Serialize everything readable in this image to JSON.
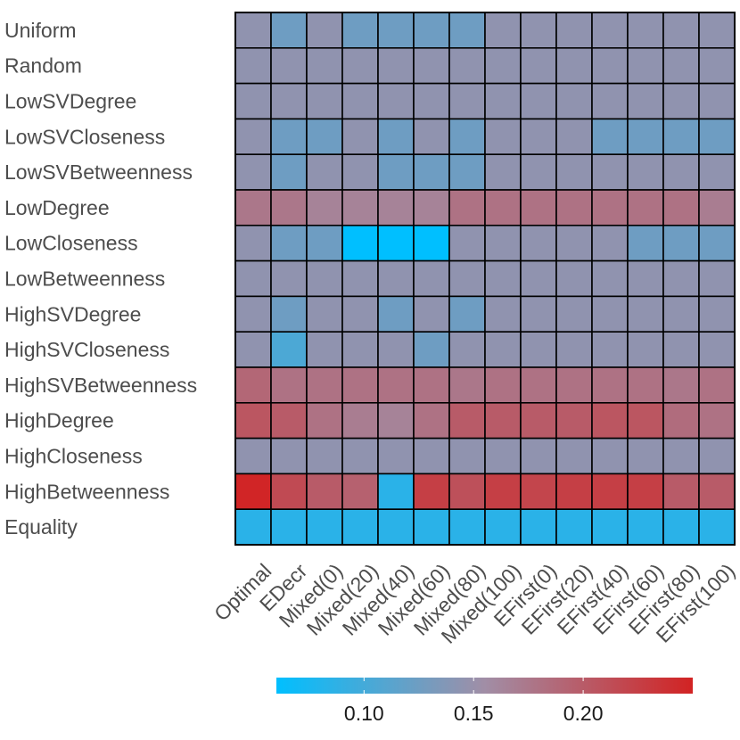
{
  "chart_data": {
    "type": "heatmap",
    "rows": [
      "Uniform",
      "Random",
      "LowSVDegree",
      "LowSVCloseness",
      "LowSVBetweenness",
      "LowDegree",
      "LowCloseness",
      "LowBetweenness",
      "HighSVDegree",
      "HighSVCloseness",
      "HighSVBetweenness",
      "HighDegree",
      "HighCloseness",
      "HighBetweenness",
      "Equality"
    ],
    "columns": [
      "Optimal",
      "EDecr",
      "Mixed(0)",
      "Mixed(20)",
      "Mixed(40)",
      "Mixed(60)",
      "Mixed(80)",
      "Mixed(100)",
      "EFirst(0)",
      "EFirst(20)",
      "EFirst(40)",
      "EFirst(60)",
      "EFirst(80)",
      "EFirst(100)"
    ],
    "values": [
      [
        0.145,
        0.125,
        0.145,
        0.125,
        0.125,
        0.125,
        0.125,
        0.145,
        0.145,
        0.145,
        0.145,
        0.145,
        0.145,
        0.145
      ],
      [
        0.145,
        0.145,
        0.145,
        0.145,
        0.145,
        0.145,
        0.145,
        0.145,
        0.145,
        0.145,
        0.145,
        0.145,
        0.145,
        0.145
      ],
      [
        0.145,
        0.145,
        0.145,
        0.145,
        0.145,
        0.145,
        0.145,
        0.145,
        0.145,
        0.145,
        0.145,
        0.145,
        0.145,
        0.145
      ],
      [
        0.145,
        0.125,
        0.125,
        0.145,
        0.125,
        0.145,
        0.125,
        0.145,
        0.145,
        0.145,
        0.125,
        0.125,
        0.125,
        0.125
      ],
      [
        0.145,
        0.125,
        0.145,
        0.145,
        0.125,
        0.125,
        0.125,
        0.145,
        0.145,
        0.145,
        0.145,
        0.145,
        0.145,
        0.145
      ],
      [
        0.175,
        0.175,
        0.165,
        0.165,
        0.165,
        0.165,
        0.18,
        0.18,
        0.18,
        0.18,
        0.18,
        0.18,
        0.18,
        0.17
      ],
      [
        0.145,
        0.125,
        0.125,
        0.06,
        0.06,
        0.06,
        0.145,
        0.145,
        0.145,
        0.145,
        0.145,
        0.125,
        0.125,
        0.125
      ],
      [
        0.145,
        0.145,
        0.145,
        0.145,
        0.145,
        0.145,
        0.145,
        0.145,
        0.145,
        0.145,
        0.145,
        0.145,
        0.145,
        0.145
      ],
      [
        0.145,
        0.125,
        0.145,
        0.145,
        0.125,
        0.145,
        0.125,
        0.145,
        0.145,
        0.145,
        0.145,
        0.145,
        0.145,
        0.145
      ],
      [
        0.145,
        0.105,
        0.145,
        0.145,
        0.145,
        0.125,
        0.145,
        0.145,
        0.145,
        0.145,
        0.145,
        0.145,
        0.145,
        0.145
      ],
      [
        0.19,
        0.18,
        0.18,
        0.18,
        0.18,
        0.18,
        0.175,
        0.18,
        0.18,
        0.18,
        0.18,
        0.18,
        0.175,
        0.18
      ],
      [
        0.205,
        0.2,
        0.18,
        0.17,
        0.165,
        0.18,
        0.2,
        0.2,
        0.2,
        0.2,
        0.205,
        0.205,
        0.185,
        0.18
      ],
      [
        0.145,
        0.145,
        0.145,
        0.145,
        0.145,
        0.145,
        0.145,
        0.145,
        0.145,
        0.145,
        0.145,
        0.145,
        0.145,
        0.145
      ],
      [
        0.248,
        0.215,
        0.2,
        0.195,
        0.085,
        0.225,
        0.21,
        0.225,
        0.22,
        0.225,
        0.225,
        0.225,
        0.2,
        0.2
      ],
      [
        0.085,
        0.085,
        0.085,
        0.085,
        0.085,
        0.085,
        0.085,
        0.085,
        0.085,
        0.085,
        0.085,
        0.085,
        0.085,
        0.085
      ]
    ],
    "colorbar": {
      "min": 0.06,
      "max": 0.25,
      "low_color": "#00bfff",
      "mid_color": "#a18ea6",
      "high_color": "#d22323",
      "ticks": [
        0.1,
        0.15,
        0.2
      ],
      "tick_labels": [
        "0.10",
        "0.15",
        "0.20"
      ]
    }
  }
}
